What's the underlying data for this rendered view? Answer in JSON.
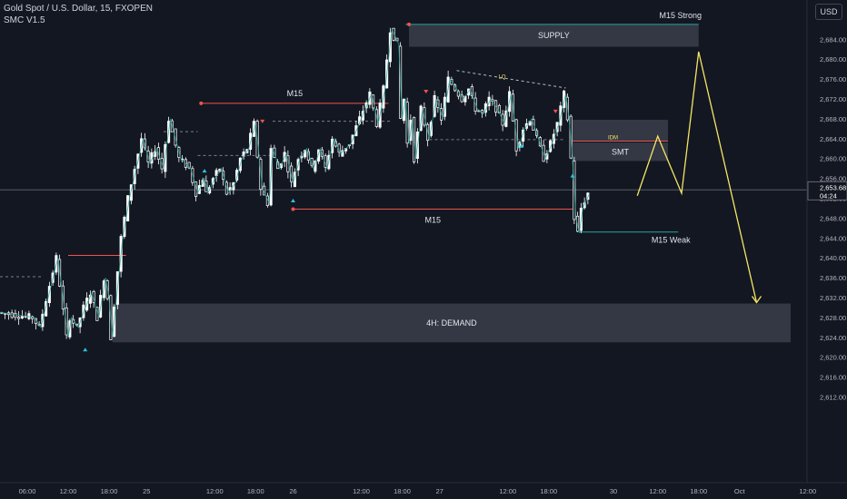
{
  "header": {
    "title": "Gold Spot / U.S. Dollar, 15, FXOPEN",
    "indicator": "SMC V1.5"
  },
  "currency_button": "USD",
  "price_badge": {
    "price": "2,653.68",
    "countdown": "04:24"
  },
  "colors": {
    "background": "#131722",
    "candle": "#ffffff",
    "structure_line": "#26a69a",
    "high_line": "#ef5350",
    "projection": "#f5e663",
    "zone_fill": "#4a4e5c",
    "current_price": "#787b86"
  },
  "chart_data": {
    "type": "candlestick",
    "y_axis": {
      "range": [
        2609,
        2688
      ],
      "ticks": [
        "2,684.00",
        "2,680.00",
        "2,676.00",
        "2,672.00",
        "2,668.00",
        "2,664.00",
        "2,660.00",
        "2,656.00",
        "2,652.00",
        "2,648.00",
        "2,644.00",
        "2,640.00",
        "2,636.00",
        "2,632.00",
        "2,628.00",
        "2,624.00",
        "2,620.00",
        "2,616.00",
        "2,612.00"
      ],
      "tick_values": [
        2684,
        2680,
        2676,
        2672,
        2668,
        2664,
        2660,
        2656,
        2652,
        2648,
        2644,
        2640,
        2636,
        2632,
        2628,
        2624,
        2620,
        2616,
        2612
      ]
    },
    "x_axis": {
      "ticks": [
        "06:00",
        "12:00",
        "18:00",
        "25",
        "12:00",
        "18:00",
        "26",
        "12:00",
        "18:00",
        "27",
        "12:00",
        "18:00",
        "30",
        "12:00",
        "18:00",
        "Oct",
        "12:00"
      ],
      "tick_index": [
        8,
        20,
        32,
        43,
        63,
        75,
        86,
        106,
        118,
        129,
        149,
        161,
        180,
        193,
        205,
        217,
        237
      ]
    },
    "price_path": {
      "index": [
        0,
        10,
        12,
        17,
        20,
        21,
        23,
        25,
        27,
        29,
        31,
        32,
        33,
        36,
        38,
        42,
        44,
        46,
        48,
        50,
        53,
        56,
        58,
        60,
        61,
        63,
        65,
        67,
        69,
        71,
        73,
        75,
        77,
        79,
        80,
        82,
        84,
        86,
        88,
        90,
        92,
        94,
        96,
        98,
        100,
        103,
        106,
        109,
        111,
        113,
        115,
        117,
        118,
        119,
        120,
        121,
        122,
        124,
        126,
        128,
        130,
        132,
        134,
        136,
        138,
        140,
        142,
        144,
        146,
        148,
        150,
        152,
        154,
        156,
        158,
        160,
        162,
        164,
        166,
        167,
        168,
        169,
        170,
        171,
        173
      ],
      "price": [
        2629,
        2628,
        2626,
        2640,
        2624,
        2628,
        2626,
        2630,
        2633,
        2628,
        2636,
        2632,
        2624,
        2644,
        2652,
        2664,
        2659,
        2662,
        2658,
        2668,
        2660,
        2658,
        2653,
        2656,
        2653,
        2656,
        2658,
        2653,
        2655,
        2660,
        2662,
        2667,
        2654,
        2651,
        2662,
        2658,
        2661,
        2655,
        2660,
        2662,
        2658,
        2662,
        2658,
        2664,
        2661,
        2663,
        2668,
        2673,
        2667,
        2674,
        2686,
        2683,
        2668,
        2672,
        2663,
        2668,
        2660,
        2670,
        2664,
        2672,
        2668,
        2676,
        2674,
        2672,
        2674,
        2670,
        2669,
        2672,
        2670,
        2667,
        2673,
        2662,
        2666,
        2668,
        2664,
        2660,
        2663,
        2667,
        2673,
        2668,
        2660,
        2648,
        2645,
        2650,
        2653
      ]
    },
    "zones": [
      {
        "label": "SUPPLY",
        "x0": 120,
        "x1": 205,
        "y0": 2682.5,
        "y1": 2687
      },
      {
        "label": "4H: DEMAND",
        "x0": 33,
        "x1": 232,
        "y0": 2623,
        "y1": 2630.8
      },
      {
        "label": "",
        "x0": 168,
        "x1": 196,
        "y0": 2663.6,
        "y1": 2667.8
      },
      {
        "label": "SMT",
        "x0": 168,
        "x1": 196,
        "y0": 2659.5,
        "y1": 2663.2
      }
    ],
    "levels": [
      {
        "label": "M15",
        "x0": 59,
        "x1": 114,
        "y": 2671.1,
        "color": "high"
      },
      {
        "label": "M15",
        "x0": 86,
        "x1": 168,
        "y": 2649.8,
        "color": "high"
      },
      {
        "label": "M15 Strong",
        "x0": 119,
        "x1": 205,
        "y": 2687,
        "color": "structure"
      },
      {
        "label": "M15 Weak",
        "x0": 170,
        "x1": 199,
        "y": 2645.2,
        "color": "structure"
      },
      {
        "label": "IDM",
        "x0": 168,
        "x1": 196,
        "y": 2663.5,
        "color": "high"
      },
      {
        "label": "",
        "x0": 20,
        "x1": 37,
        "y": 2640.5,
        "color": "high"
      }
    ],
    "dashed_levels": [
      {
        "label": "",
        "x0": 0,
        "x1": 12,
        "y": 2636.2
      },
      {
        "label": "",
        "x0": 48,
        "x1": 58,
        "y": 2665.4
      },
      {
        "label": "",
        "x0": 58,
        "x1": 80,
        "y": 2660.6
      },
      {
        "label": "",
        "x0": 80,
        "x1": 115,
        "y": 2667.5
      },
      {
        "label": "",
        "x0": 126,
        "x1": 166,
        "y": 2663.8
      },
      {
        "label": "LQ",
        "x0": 134,
        "x1": 166,
        "y": 2677.7,
        "y_end": 2674.2
      }
    ],
    "projection": {
      "index": [
        187,
        193,
        200,
        205,
        222
      ],
      "price": [
        2652.5,
        2664.5,
        2653,
        2681.5,
        2631
      ]
    },
    "markers": {
      "up": [
        [
          25,
          2623
        ],
        [
          60,
          2659
        ],
        [
          86,
          2653
        ],
        [
          153,
          2664
        ],
        [
          168,
          2658
        ]
      ],
      "down": [
        [
          77,
          2666
        ],
        [
          125,
          2672
        ],
        [
          163,
          2668
        ]
      ]
    },
    "current_price": 2653.68,
    "xlabel": "",
    "ylabel": ""
  }
}
